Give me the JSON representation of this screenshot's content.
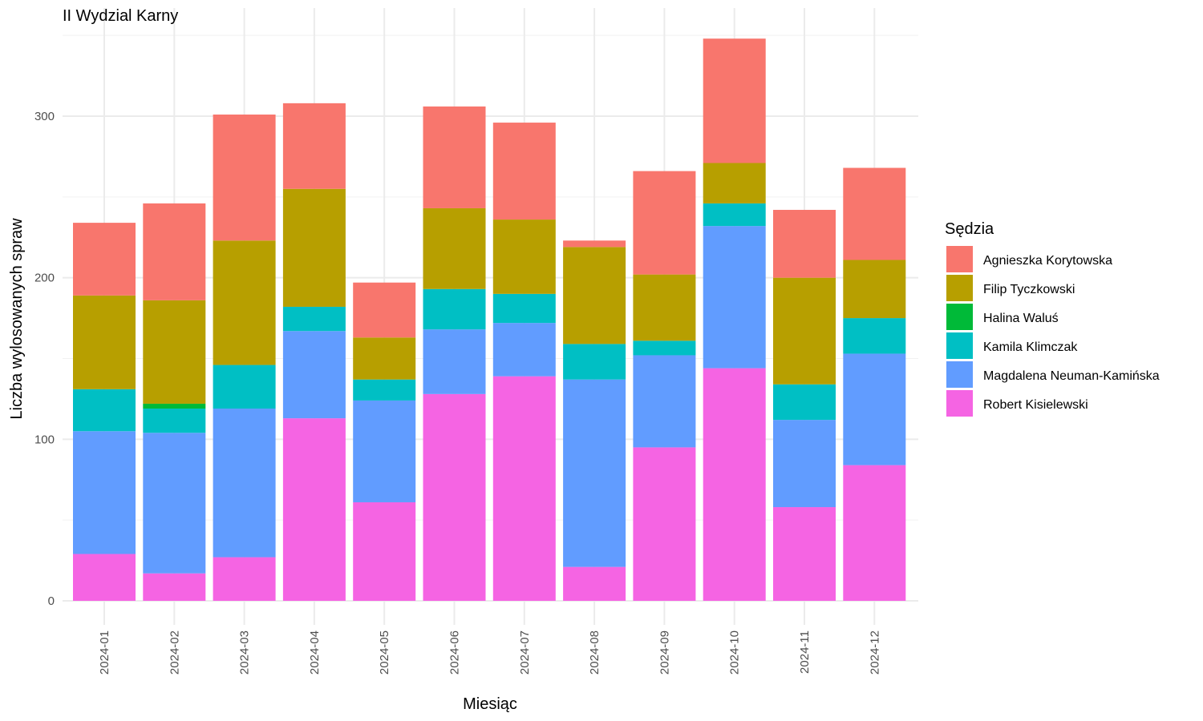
{
  "chart_data": {
    "type": "bar",
    "stacked": true,
    "title": "II Wydzial Karny",
    "xlabel": "Miesiąc",
    "ylabel": "Liczba wylosowanych spraw",
    "ylim": [
      0,
      350
    ],
    "yticks": [
      0,
      100,
      200,
      300
    ],
    "grid": true,
    "legend_position": "right",
    "legend_title": "Sędzia",
    "categories": [
      "2024-01",
      "2024-02",
      "2024-03",
      "2024-04",
      "2024-05",
      "2024-06",
      "2024-07",
      "2024-08",
      "2024-09",
      "2024-10",
      "2024-11",
      "2024-12"
    ],
    "series": [
      {
        "name": "Agnieszka Korytowska",
        "color": "#F8766D",
        "values": [
          45,
          60,
          78,
          53,
          34,
          63,
          60,
          4,
          64,
          77,
          42,
          57
        ]
      },
      {
        "name": "Filip Tyczkowski",
        "color": "#B79F00",
        "values": [
          58,
          64,
          77,
          73,
          26,
          50,
          46,
          60,
          41,
          25,
          66,
          36
        ]
      },
      {
        "name": "Halina Waluś",
        "color": "#00BA38",
        "values": [
          0,
          3,
          0,
          0,
          0,
          0,
          0,
          0,
          0,
          0,
          0,
          0
        ]
      },
      {
        "name": "Kamila Klimczak",
        "color": "#00BFC4",
        "values": [
          26,
          15,
          27,
          15,
          13,
          25,
          18,
          22,
          9,
          14,
          22,
          22
        ]
      },
      {
        "name": "Magdalena Neuman-Kamińska",
        "color": "#619CFF",
        "values": [
          76,
          87,
          92,
          54,
          63,
          40,
          33,
          116,
          57,
          88,
          54,
          69
        ]
      },
      {
        "name": "Robert Kisielewski",
        "color": "#F564E3",
        "values": [
          29,
          17,
          27,
          113,
          61,
          128,
          139,
          21,
          95,
          144,
          58,
          84
        ]
      }
    ]
  }
}
